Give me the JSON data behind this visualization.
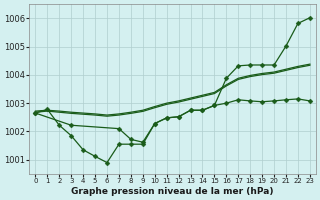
{
  "x": [
    0,
    1,
    2,
    3,
    4,
    5,
    6,
    7,
    8,
    9,
    10,
    11,
    12,
    13,
    14,
    15,
    16,
    17,
    18,
    19,
    20,
    21,
    22,
    23
  ],
  "y_smooth1": [
    1002.72,
    1002.75,
    1002.72,
    1002.68,
    1002.65,
    1002.62,
    1002.58,
    1002.62,
    1002.68,
    1002.75,
    1002.88,
    1003.0,
    1003.08,
    1003.18,
    1003.28,
    1003.38,
    1003.65,
    1003.88,
    1003.98,
    1004.05,
    1004.1,
    1004.2,
    1004.3,
    1004.38
  ],
  "y_smooth2": [
    1002.68,
    1002.72,
    1002.68,
    1002.64,
    1002.61,
    1002.58,
    1002.54,
    1002.58,
    1002.64,
    1002.71,
    1002.84,
    1002.96,
    1003.04,
    1003.14,
    1003.24,
    1003.34,
    1003.61,
    1003.84,
    1003.94,
    1004.01,
    1004.06,
    1004.16,
    1004.26,
    1004.34
  ],
  "y_marker1": [
    1002.65,
    1002.78,
    1002.22,
    1001.85,
    1001.35,
    1001.12,
    1000.9,
    1001.55,
    1001.55,
    1001.55,
    1002.28,
    1002.48,
    1002.52,
    1002.75,
    1002.75,
    1002.92,
    1003.0,
    1003.12,
    1003.08,
    1003.05,
    1003.08,
    1003.12,
    1003.15,
    1003.08
  ],
  "y_marker2": [
    1002.65,
    null,
    null,
    1002.22,
    null,
    null,
    null,
    1002.1,
    1001.72,
    1001.62,
    1002.28,
    1002.48,
    1002.52,
    1002.75,
    1002.75,
    1002.92,
    1003.88,
    1004.32,
    1004.35,
    1004.35,
    1004.35,
    1005.02,
    1005.82,
    1006.02
  ],
  "bg_color": "#d4f0f0",
  "grid_color": "#b0cece",
  "line_color": "#1a5c1a",
  "xlabel": "Graphe pression niveau de la mer (hPa)",
  "ylim": [
    1000.5,
    1006.5
  ],
  "yticks": [
    1001,
    1002,
    1003,
    1004,
    1005,
    1006
  ],
  "xticks": [
    0,
    1,
    2,
    3,
    4,
    5,
    6,
    7,
    8,
    9,
    10,
    11,
    12,
    13,
    14,
    15,
    16,
    17,
    18,
    19,
    20,
    21,
    22,
    23
  ]
}
